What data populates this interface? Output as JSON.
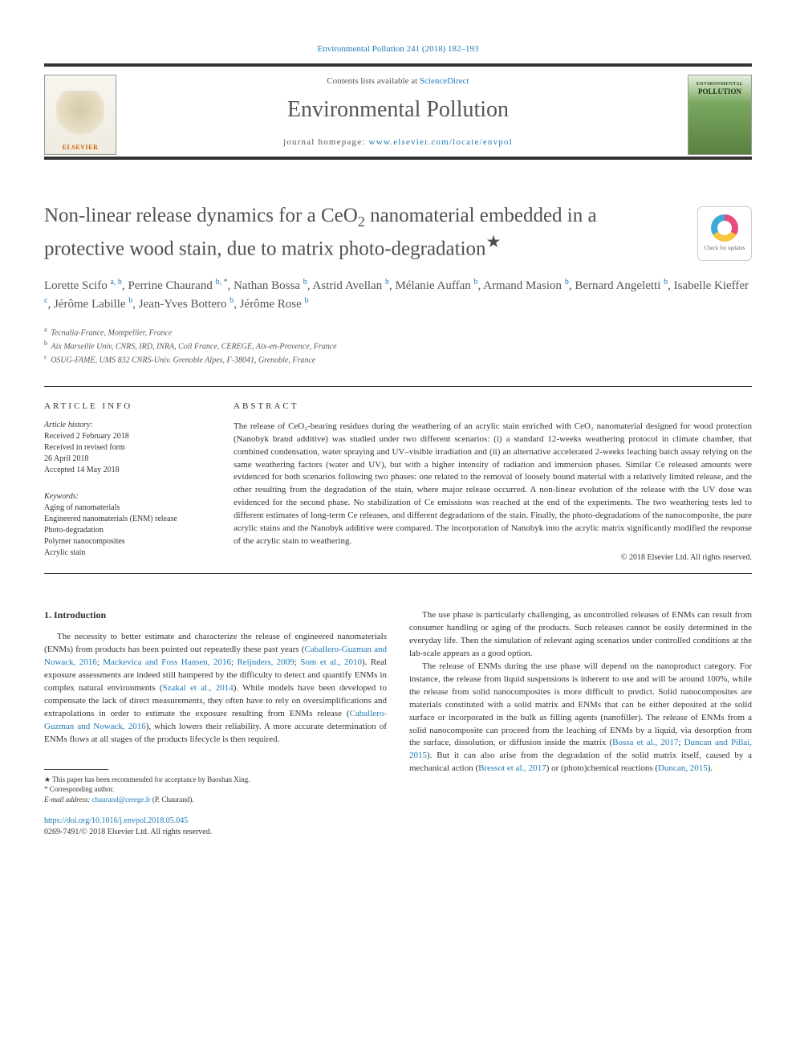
{
  "journal_ref": "Environmental Pollution 241 (2018) 182–193",
  "header": {
    "elsevier": "ELSEVIER",
    "contents_prefix": "Contents lists available at ",
    "contents_link": "ScienceDirect",
    "journal_title": "Environmental Pollution",
    "homepage_prefix": "journal homepage: ",
    "homepage_link": "www.elsevier.com/locate/envpol",
    "cover_small": "ENVIRONMENTAL",
    "cover_big": "POLLUTION"
  },
  "title_line1": "Non-linear release dynamics for a CeO",
  "title_sub": "2",
  "title_line1b": " nanomaterial embedded in a",
  "title_line2": "protective wood stain, due to matrix photo-degradation",
  "title_star": "★",
  "check_updates": "Check for updates",
  "authors_html": "Lorette Scifo <sup>a, b</sup>, Perrine Chaurand <sup>b, *</sup>, Nathan Bossa <sup>b</sup>, Astrid Avellan <sup>b</sup>, Mélanie Auffan <sup>b</sup>, Armand Masion <sup>b</sup>, Bernard Angeletti <sup>b</sup>, Isabelle Kieffer <sup>c</sup>, Jérôme Labille <sup>b</sup>, Jean-Yves Bottero <sup>b</sup>, Jérôme Rose <sup>b</sup>",
  "affiliations": [
    {
      "sup": "a",
      "text": "Tecnalia-France, Montpellier, France"
    },
    {
      "sup": "b",
      "text": "Aix Marseille Univ, CNRS, IRD, INRA, Coll France, CEREGE, Aix-en-Provence, France"
    },
    {
      "sup": "c",
      "text": "OSUG-FAME, UMS 832 CNRS-Univ. Grenoble Alpes, F-38041, Grenoble, France"
    }
  ],
  "article_info_head": "ARTICLE INFO",
  "abstract_head": "ABSTRACT",
  "history_label": "Article history:",
  "history": [
    "Received 2 February 2018",
    "Received in revised form",
    "26 April 2018",
    "Accepted 14 May 2018"
  ],
  "keywords_label": "Keywords:",
  "keywords": [
    "Aging of nanomaterials",
    "Engineered nanomaterials (ENM) release",
    "Photo-degradation",
    "Polymer nanocomposites",
    "Acrylic stain"
  ],
  "abstract": "The release of CeO₂-bearing residues during the weathering of an acrylic stain enriched with CeO₂ nanomaterial designed for wood protection (Nanobyk brand additive) was studied under two different scenarios: (i) a standard 12-weeks weathering protocol in climate chamber, that combined condensation, water spraying and UV–visible irradiation and (ii) an alternative accelerated 2-weeks leaching batch assay relying on the same weathering factors (water and UV), but with a higher intensity of radiation and immersion phases. Similar Ce released amounts were evidenced for both scenarios following two phases: one related to the removal of loosely bound material with a relatively limited release, and the other resulting from the degradation of the stain, where major release occurred. A non-linear evolution of the release with the UV dose was evidenced for the second phase. No stabilization of Ce emissions was reached at the end of the experiments. The two weathering tests led to different estimates of long-term Ce releases, and different degradations of the stain. Finally, the photo-degradations of the nanocomposite, the pure acrylic stains and the Nanobyk additive were compared. The incorporation of Nanobyk into the acrylic matrix significantly modified the response of the acrylic stain to weathering.",
  "copyright": "© 2018 Elsevier Ltd. All rights reserved.",
  "intro_head": "1. Introduction",
  "col1": {
    "p1_pre": "The necessity to better estimate and characterize the release of engineered nanomaterials (ENMs) from products has been pointed out repeatedly these past years (",
    "c1": "Caballero-Guzman and Nowack, 2016",
    "s1": "; ",
    "c2": "Mackevica and Foss Hansen, 2016",
    "s2": "; ",
    "c3": "Reijnders, 2009",
    "s3": "; ",
    "c4": "Som et al., 2010",
    "p1_mid": "). Real exposure assessments are indeed still hampered by the difficulty to detect and quantify ENMs in complex natural environments (",
    "c5": "Szakal et al., 2014",
    "p1_mid2": "). While models have been developed to compensate the lack of direct measurements, they often have to rely on oversimplifications and extrapolations in order to estimate the exposure resulting from ENMs release (",
    "c6": "Caballero-Guzman and Nowack, 2016",
    "p1_end": "), which lowers their reliability. A more accurate determination of ENMs flows at all stages of the products lifecycle is then required."
  },
  "col2": {
    "p1": "The use phase is particularly challenging, as uncontrolled releases of ENMs can result from consumer handling or aging of the products. Such releases cannot be easily determined in the everyday life. Then the simulation of relevant aging scenarios under controlled conditions at the lab-scale appears as a good option.",
    "p2_pre": "The release of ENMs during the use phase will depend on the nanoproduct category. For instance, the release from liquid suspensions is inherent to use and will be around 100%, while the release from solid nanocomposites is more difficult to predict. Solid nanocomposites are materials constituted with a solid matrix and ENMs that can be either deposited at the solid surface or incorporated in the bulk as filling agents (nanofiller). The release of ENMs from a solid nanocomposite can proceed from the leaching of ENMs by a liquid, via desorption from the surface, dissolution, or diffusion inside the matrix (",
    "c1": "Bossa et al., 2017",
    "s1": "; ",
    "c2": "Duncan and Pillai, 2015",
    "p2_mid": "). But it can also arise from the degradation of the solid matrix itself, caused by a mechanical action (",
    "c3": "Bressot et al., 2017",
    "p2_mid2": ") or (photo)chemical reactions (",
    "c4": "Duncan, 2015",
    "p2_end": ")."
  },
  "footnotes": {
    "star": "★ This paper has been recommended for acceptance by Baoshan Xing.",
    "corr": "* Corresponding author.",
    "email_label": "E-mail address: ",
    "email": "chaurand@cerege.fr",
    "email_post": " (P. Chaurand)."
  },
  "doi": {
    "link": "https://doi.org/10.1016/j.envpol.2018.05.045",
    "issn": "0269-7491/© 2018 Elsevier Ltd. All rights reserved."
  },
  "colors": {
    "link": "#207ab7",
    "text": "#333333",
    "title_gray": "#505050"
  }
}
